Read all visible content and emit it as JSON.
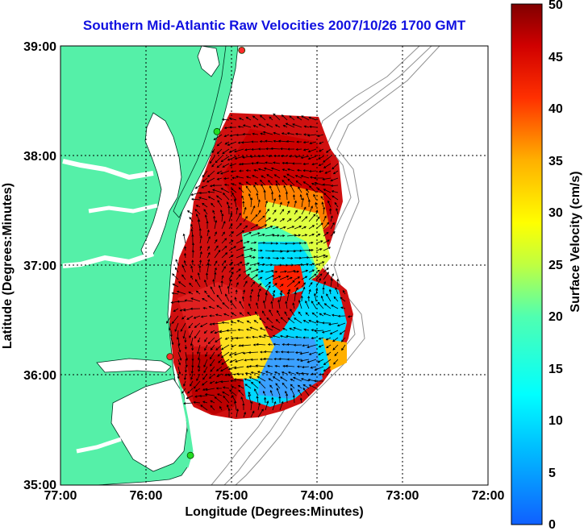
{
  "title": "Southern Mid-Atlantic Raw Velocities 2007/10/26 1700 GMT",
  "x_axis": {
    "label": "Longitude (Degrees:Minutes)",
    "ticks": [
      "77:00",
      "76:00",
      "75:00",
      "74:00",
      "73:00",
      "72:00"
    ],
    "range": [
      -77,
      -72
    ]
  },
  "y_axis": {
    "label": "Latitude (Degrees:Minutes)",
    "ticks": [
      "39:00",
      "38:00",
      "37:00",
      "36:00",
      "35:00"
    ],
    "range": [
      35,
      39
    ]
  },
  "colorbar": {
    "label": "Surface Velocity (cm/s)",
    "ticks": [
      "50",
      "45",
      "40",
      "35",
      "30",
      "25",
      "20",
      "15",
      "10",
      "5",
      "0"
    ],
    "range": [
      0,
      50
    ]
  },
  "colors": {
    "land": "#55f0a8",
    "ocean": "#ffffff",
    "title": "#1010e0",
    "station": "#ff2a2a",
    "station_alt": "#22dd22"
  },
  "stations": [
    {
      "lon": -74.88,
      "lat": 38.96,
      "type": "red"
    },
    {
      "lon": -75.17,
      "lat": 38.22,
      "type": "green"
    },
    {
      "lon": -75.72,
      "lat": 36.17,
      "type": "red"
    },
    {
      "lon": -75.48,
      "lat": 35.27,
      "type": "green"
    }
  ]
}
